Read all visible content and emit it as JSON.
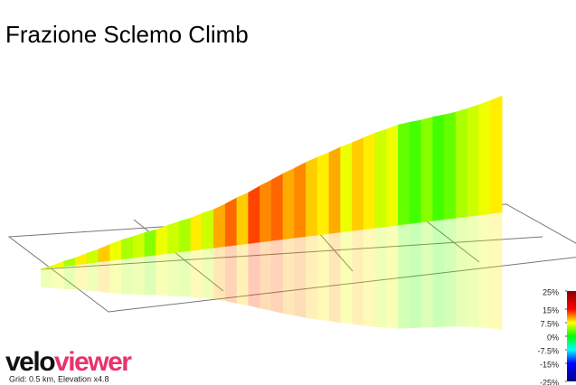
{
  "chart_data": {
    "type": "profile3d",
    "title": "Frazione Sclemo Climb",
    "values": [
      6,
      7,
      5,
      8,
      6,
      9,
      7,
      5,
      6,
      4,
      7,
      6,
      5,
      8,
      6,
      10,
      12,
      9,
      13,
      11,
      12,
      10,
      11,
      9,
      8,
      10,
      7,
      9,
      8,
      6,
      7,
      3,
      2,
      4,
      2,
      3,
      5,
      6,
      7,
      8
    ],
    "colorscale": {
      "stops": [
        -25,
        -15,
        -7.5,
        0,
        7.5,
        15,
        25
      ],
      "colors": [
        "#00008b",
        "#0000ff",
        "#00ffff",
        "#00ff00",
        "#ffff00",
        "#ff0000",
        "#8b0000"
      ]
    },
    "clim": [
      -25,
      25
    ],
    "cticks": [
      {
        "value": 25,
        "label": "25%"
      },
      {
        "value": 15,
        "label": "15%"
      },
      {
        "value": 7.5,
        "label": "7.5%"
      },
      {
        "value": 0,
        "label": "0%"
      },
      {
        "value": -7.5,
        "label": "-7.5%"
      },
      {
        "value": -15,
        "label": "-15%"
      },
      {
        "value": -25,
        "label": "-25%"
      }
    ],
    "footnote": "Grid: 0.5 km, Elevation x4.8",
    "logo": [
      "velo",
      "viewer"
    ]
  }
}
